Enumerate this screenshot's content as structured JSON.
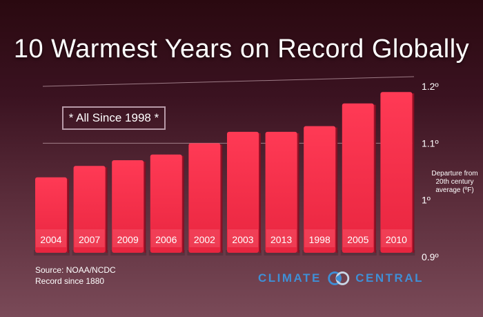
{
  "title": "10 Warmest Years on Record Globally",
  "note": "* All Since 1998 *",
  "ylabel": "Departure from 20th century average (ºF)",
  "source_lines": [
    "Source: NOAA/NCDC",
    "Record since 1880"
  ],
  "logo": {
    "left_word": "CLIMATE",
    "right_word": "CENTRAL",
    "icon": "climate-central-rings-icon"
  },
  "colors": {
    "bar": "#e8253f",
    "bar_light": "#f06575",
    "logo_blue": "#3f8fd6"
  },
  "chart_data": {
    "type": "bar",
    "categories": [
      "2004",
      "2007",
      "2009",
      "2006",
      "2002",
      "2003",
      "2013",
      "1998",
      "2005",
      "2010"
    ],
    "values": [
      1.04,
      1.06,
      1.07,
      1.08,
      1.1,
      1.12,
      1.12,
      1.13,
      1.17,
      1.19
    ],
    "ylim": [
      0.9,
      1.2
    ],
    "yticks": [
      {
        "value": 0.9,
        "label": "0.9º"
      },
      {
        "value": 1.0,
        "label": "1º"
      },
      {
        "value": 1.1,
        "label": "1.1º"
      },
      {
        "value": 1.2,
        "label": "1.2º"
      }
    ],
    "title": "10 Warmest Years on Record Globally",
    "ylabel": "Departure from 20th century average (ºF)",
    "grid": true
  }
}
